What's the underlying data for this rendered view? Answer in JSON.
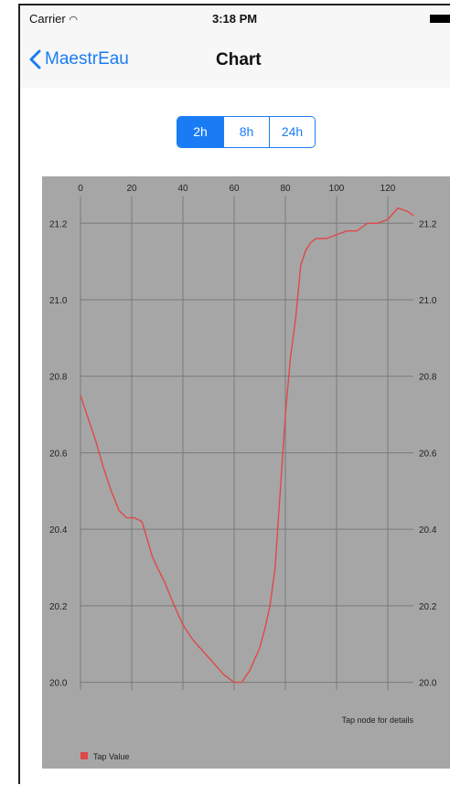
{
  "status_bar": {
    "carrier": "Carrier",
    "time": "3:18 PM"
  },
  "nav": {
    "back_label": "MaestrEau",
    "title": "Chart"
  },
  "segments": {
    "items": [
      "2h",
      "8h",
      "24h"
    ],
    "selected": "2h"
  },
  "chart_data": {
    "type": "line",
    "title": "",
    "xlabel": "",
    "ylabel": "",
    "x_ticks": [
      "0",
      "20",
      "40",
      "60",
      "80",
      "100",
      "120"
    ],
    "y_ticks": [
      "20.0",
      "20.2",
      "20.4",
      "20.6",
      "20.8",
      "21.0",
      "21.2"
    ],
    "xlim": [
      0,
      130
    ],
    "ylim": [
      19.98,
      21.27
    ],
    "grid": true,
    "legend": {
      "position": "bottom-left",
      "entries": [
        {
          "name": "Tap Value",
          "color": "#e04848"
        }
      ]
    },
    "annotation": "Tap node for details",
    "series": [
      {
        "name": "Tap Value",
        "color": "#e04848",
        "x": [
          0,
          3,
          6,
          9,
          12,
          15,
          18,
          21,
          24,
          28,
          30,
          33,
          36,
          40,
          44,
          48,
          52,
          56,
          60,
          63,
          66,
          68,
          70,
          72,
          74,
          76,
          78,
          80,
          82,
          84,
          86,
          88,
          90,
          92,
          96,
          100,
          104,
          108,
          112,
          116,
          120,
          124,
          128,
          130
        ],
        "y": [
          20.75,
          20.69,
          20.63,
          20.56,
          20.5,
          20.45,
          20.43,
          20.43,
          20.42,
          20.33,
          20.3,
          20.26,
          20.21,
          20.15,
          20.11,
          20.08,
          20.05,
          20.02,
          20.0,
          20.0,
          20.03,
          20.06,
          20.09,
          20.14,
          20.2,
          20.3,
          20.5,
          20.7,
          20.85,
          20.95,
          21.09,
          21.13,
          21.15,
          21.16,
          21.16,
          21.17,
          21.18,
          21.18,
          21.2,
          21.2,
          21.21,
          21.24,
          21.23,
          21.22
        ]
      }
    ]
  },
  "colors": {
    "accent": "#1a7cf5",
    "plot_bg": "#a6a6a6",
    "series": "#e04848"
  }
}
